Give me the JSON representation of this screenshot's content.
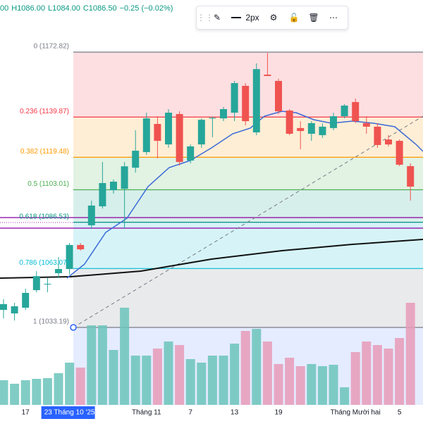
{
  "header": {
    "items": [
      "00",
      "H1086.00",
      "L1084.00",
      "C1086.50",
      "−0.25 (−0.02%)"
    ]
  },
  "toolbar": {
    "width_label": "2px"
  },
  "chart_data": {
    "type": "candlestick",
    "categories": [
      null,
      null,
      "17",
      null,
      null,
      null,
      "23 Tháng 10 '25",
      null,
      null,
      null,
      null,
      null,
      null,
      "Tháng 11",
      null,
      null,
      null,
      "7",
      null,
      null,
      null,
      "13",
      null,
      null,
      null,
      "19",
      null,
      null,
      null,
      null,
      null,
      null,
      "Tháng Mười hai",
      null,
      null,
      null,
      "5",
      null
    ],
    "open": [
      1042.1,
      1040.3,
      1043.2,
      1052.1,
      1055.0,
      1060.7,
      1062.8,
      1075.0,
      1085.0,
      1094.6,
      1102.8,
      1103.5,
      1114.2,
      1122.1,
      1136.4,
      1126.0,
      1141.4,
      1117.8,
      1126.0,
      1139.2,
      1139.2,
      1142.1,
      1155.7,
      1132.1,
      1161.4,
      1158.2,
      1143.2,
      1134.3,
      1131.4,
      1130.7,
      1134.3,
      1140.3,
      1147.5,
      1136.8,
      1135.0,
      1128.5,
      1127.8,
      1115.0
    ],
    "high": [
      1047.5,
      1045.7,
      1052.8,
      1061.7,
      1058.2,
      1068.9,
      1076.0,
      1076.0,
      1097.5,
      1117.1,
      1108.2,
      1117.1,
      1133.2,
      1142.1,
      1140.3,
      1143.9,
      1142.8,
      1126.0,
      1139.2,
      1140.0,
      1145.0,
      1158.2,
      1157.1,
      1167.1,
      1172.4,
      1159.3,
      1143.9,
      1137.8,
      1137.8,
      1136.7,
      1142.1,
      1146.4,
      1149.3,
      1140.3,
      1136.8,
      1130.7,
      1128.5,
      1116.4
    ],
    "low": [
      1037.8,
      1036.7,
      1042.1,
      1051.0,
      1051.0,
      1058.2,
      1060.0,
      1072.1,
      1083.2,
      1093.5,
      1101.0,
      1083.2,
      1111.7,
      1120.7,
      1118.9,
      1124.3,
      1115.3,
      1116.4,
      1124.3,
      1129.6,
      1137.8,
      1137.8,
      1135.7,
      1130.7,
      1160.7,
      1141.4,
      1130.7,
      1123.5,
      1127.8,
      1129.3,
      1133.2,
      1139.2,
      1136.8,
      1131.4,
      1124.3,
      1125.0,
      1115.0,
      1097.5
    ],
    "close": [
      1045.0,
      1043.9,
      1050.7,
      1059.2,
      1055.3,
      1062.8,
      1075.0,
      1072.8,
      1095.0,
      1106.4,
      1107.1,
      1114.9,
      1122.8,
      1139.2,
      1127.8,
      1142.1,
      1117.1,
      1125.0,
      1138.5,
      1139.5,
      1143.9,
      1157.1,
      1137.8,
      1164.2,
      1160.7,
      1142.8,
      1131.4,
      1132.8,
      1136.8,
      1135.0,
      1140.3,
      1145.7,
      1137.8,
      1135.0,
      1125.7,
      1126.0,
      1115.7,
      1104.6
    ],
    "volume": [
      35,
      30,
      35,
      37,
      38,
      45,
      60,
      53,
      113,
      113,
      78,
      138,
      70,
      70,
      80,
      90,
      85,
      65,
      60,
      70,
      70,
      87,
      105,
      108,
      90,
      58,
      67,
      55,
      58,
      55,
      57,
      25,
      75,
      90,
      85,
      80,
      95,
      145
    ],
    "up_color": "#26a69a",
    "down_color": "#ef5350",
    "fib": [
      {
        "level": 0,
        "price": 1172.82,
        "label": "0 (1172.82)",
        "color": "#787b86"
      },
      {
        "level": 0.236,
        "price": 1139.87,
        "label": "0.236 (1139.87)",
        "color": "#f23645"
      },
      {
        "level": 0.382,
        "price": 1119.48,
        "label": "0.382 (1119.48)",
        "color": "#ff9800"
      },
      {
        "level": 0.5,
        "price": 1103.01,
        "label": "0.5 (1103.01)",
        "color": "#4caf50"
      },
      {
        "level": 0.618,
        "price": 1086.53,
        "label": "0.618 (1086.53)",
        "color": "#089981"
      },
      {
        "level": 0.786,
        "price": 1063.07,
        "label": "0.786 (1063.07)",
        "color": "#00bcd4"
      },
      {
        "level": 1,
        "price": 1033.19,
        "label": "1 (1033.19)",
        "color": "#787b86"
      }
    ]
  }
}
